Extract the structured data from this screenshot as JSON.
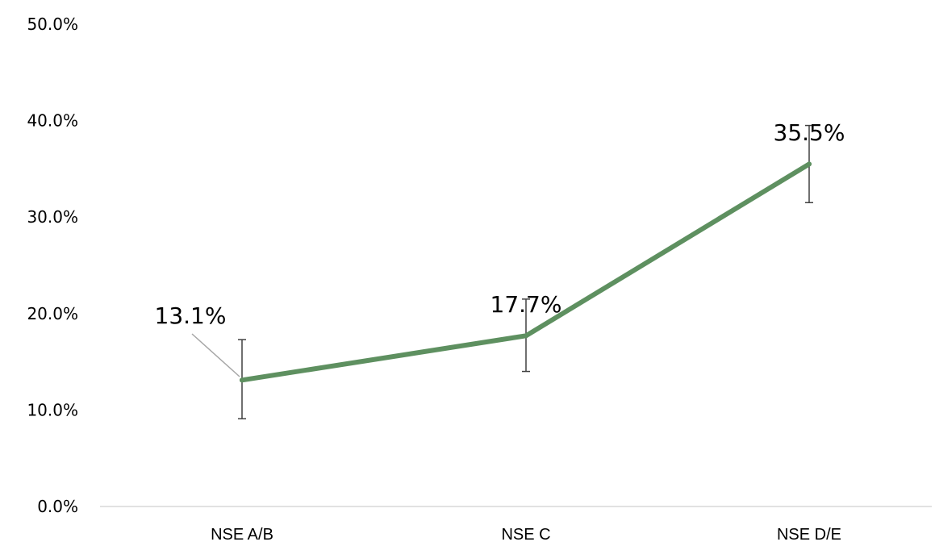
{
  "chart_data": {
    "type": "line",
    "categories": [
      "NSE A/B",
      "NSE C",
      "NSE D/E"
    ],
    "series": [
      {
        "values": [
          13.1,
          17.7,
          35.5
        ],
        "error_low": [
          9.1,
          14.0,
          31.5
        ],
        "error_high": [
          17.3,
          21.5,
          39.5
        ],
        "color": "#5e9060"
      }
    ],
    "data_labels": [
      "13.1%",
      "17.7%",
      "35.5%"
    ],
    "ylim": [
      0,
      50
    ],
    "yticks": [
      0,
      10,
      20,
      30,
      40,
      50
    ],
    "ytick_labels": [
      "0.0%",
      "10.0%",
      "20.0%",
      "30.0%",
      "40.0%",
      "50.0%"
    ],
    "grid": false,
    "title": "",
    "xlabel": "",
    "ylabel": "",
    "colors": {
      "line": "#5e9060",
      "error_bar": "#404040",
      "axis": "#d9d9d9",
      "leader": "#a6a6a6"
    }
  }
}
